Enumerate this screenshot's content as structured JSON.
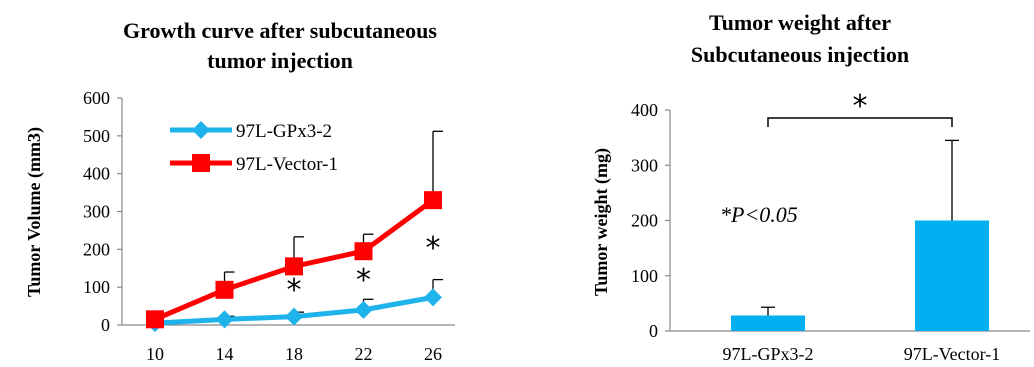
{
  "colors": {
    "series_blue": "#1fb3ec",
    "series_red": "#ff0000",
    "bar_fill": "#00b0f0",
    "axis": "#888888"
  },
  "chart_data": [
    {
      "type": "line",
      "title_lines": [
        "Growth curve after subcutaneous",
        "tumor injection"
      ],
      "xlabel": "",
      "ylabel": "Tumor Volume (mm3)",
      "x": [
        10,
        14,
        18,
        22,
        26
      ],
      "x_tick_labels": [
        "10",
        "14",
        "18",
        "22",
        "26"
      ],
      "ylim": [
        0,
        600
      ],
      "yticks": [
        0,
        100,
        200,
        300,
        400,
        500,
        600
      ],
      "series": [
        {
          "name": "97L-GPx3-2",
          "marker": "diamond",
          "values": [
            5,
            15,
            22,
            40,
            73
          ],
          "error": [
            3,
            8,
            12,
            28,
            47
          ]
        },
        {
          "name": "97L-Vector-1",
          "marker": "square",
          "values": [
            15,
            93,
            155,
            195,
            330
          ],
          "error": [
            5,
            47,
            78,
            45,
            182
          ]
        }
      ],
      "significance_marks": [
        {
          "x": 18,
          "label": "*"
        },
        {
          "x": 22,
          "label": "*"
        },
        {
          "x": 26,
          "label": "*"
        }
      ],
      "legend_position": "top-left",
      "grid": false
    },
    {
      "type": "bar",
      "title_lines": [
        "Tumor weight after",
        "Subcutaneous injection"
      ],
      "xlabel": "",
      "ylabel": "Tumor weight (mg)",
      "categories": [
        "97L-GPx3-2",
        "97L-Vector-1"
      ],
      "values": [
        28,
        200
      ],
      "error": [
        15,
        145
      ],
      "ylim": [
        0,
        400
      ],
      "yticks": [
        0,
        100,
        200,
        300,
        400
      ],
      "significance_bracket": {
        "label": "*"
      },
      "annotation": "*P<0.05",
      "grid": false
    }
  ]
}
